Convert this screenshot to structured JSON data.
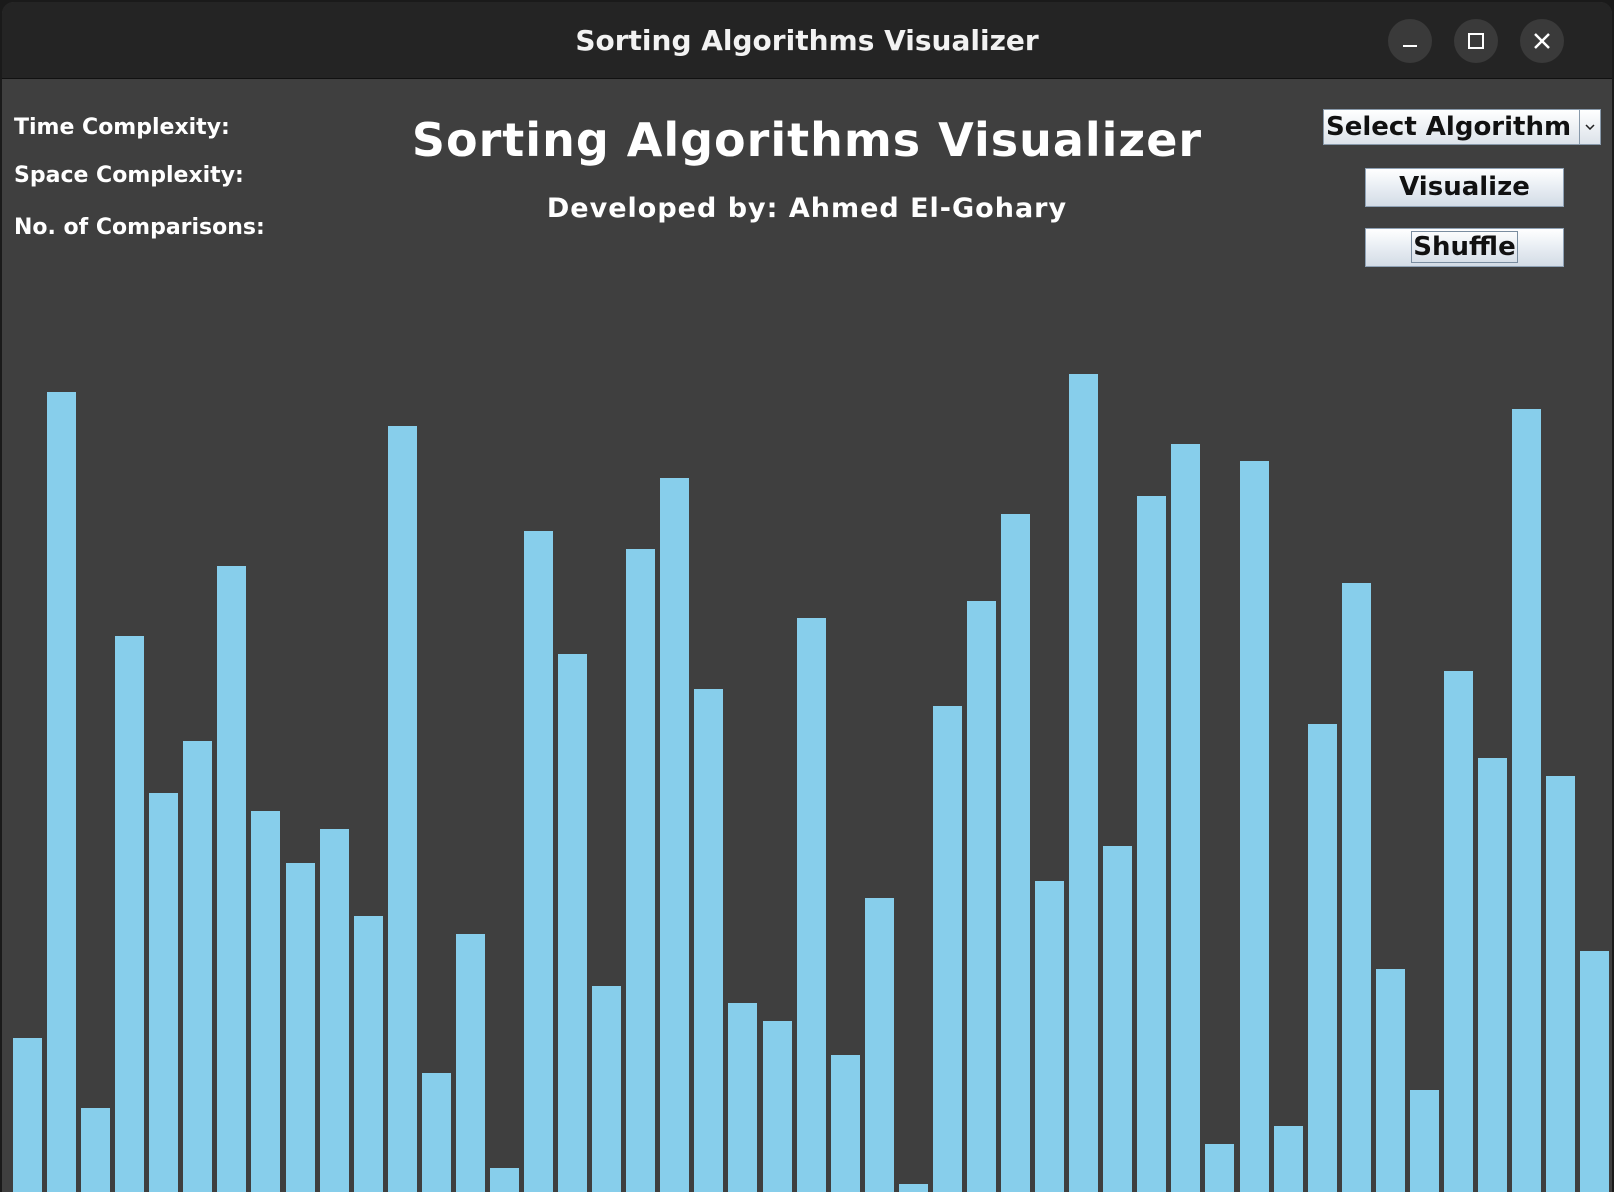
{
  "window": {
    "title": "Sorting Algorithms Visualizer",
    "controls": [
      "minimize-icon",
      "maximize-icon",
      "close-icon"
    ]
  },
  "info": {
    "time_complexity_label": "Time Complexity:",
    "space_complexity_label": "Space Complexity:",
    "comparisons_label": "No. of Comparisons:"
  },
  "header": {
    "title": "Sorting Algorithms Visualizer",
    "developer": "Developed by: Ahmed El-Gohary"
  },
  "controls": {
    "algorithm_select": "Select Algorithm",
    "visualize_label": "Visualize",
    "shuffle_label": "Shuffle"
  },
  "colors": {
    "bar": "#87ceeb",
    "background": "#3f3f3f",
    "titlebar": "#242424"
  },
  "chart_data": {
    "type": "bar",
    "values": [
      154,
      800,
      84,
      556,
      399,
      451,
      626,
      381,
      329,
      363,
      276,
      766,
      119,
      258,
      24,
      661,
      538,
      206,
      643,
      714,
      503,
      189,
      171,
      574,
      137,
      294,
      8,
      486,
      591,
      678,
      311,
      818,
      346,
      696,
      748,
      48,
      731,
      66,
      468,
      609,
      223,
      102,
      521,
      434,
      783,
      416,
      241
    ]
  }
}
